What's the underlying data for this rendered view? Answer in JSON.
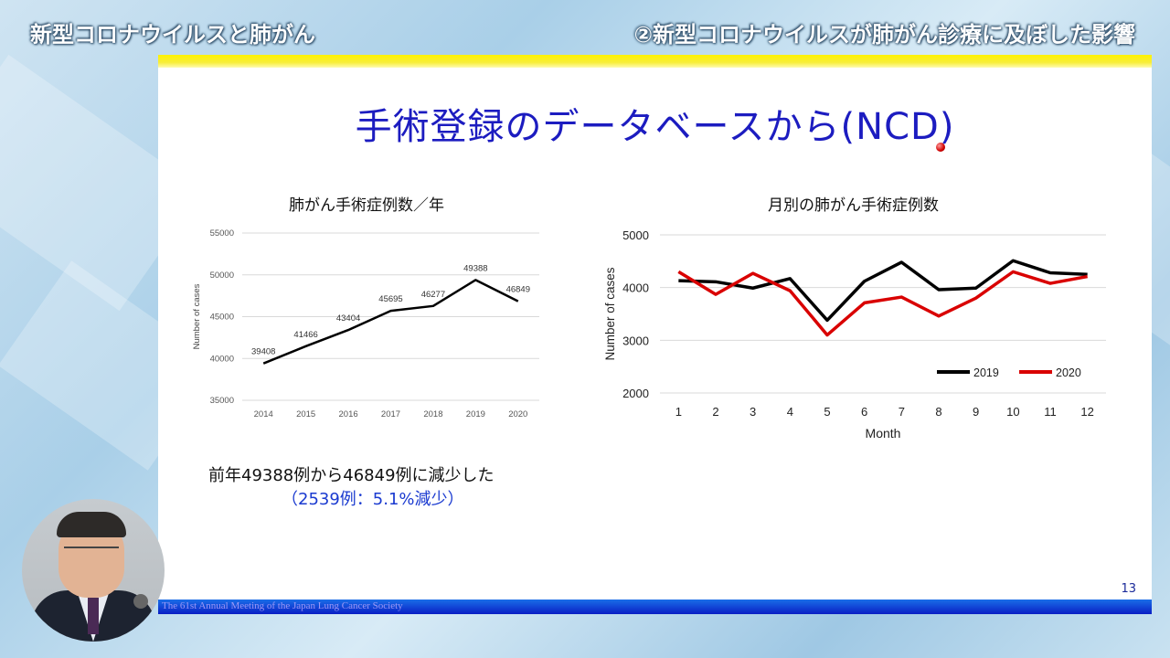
{
  "header": {
    "left_title": "新型コロナウイルスと肺がん",
    "right_title": "②新型コロナウイルスが肺がん診療に及ぼした影響"
  },
  "slide": {
    "title": "手術登録のデータベースから(NCD)",
    "note_line1": "前年49388例から46849例に減少した",
    "note_line2": "（2539例：5.1%減少）",
    "page_number": "13",
    "footer_text": "The 61st Annual Meeting of the Japan Lung Cancer Society",
    "colors": {
      "title": "#1c1cc0",
      "top_bar": "#fff200",
      "footer_bar": "#0a1fc4",
      "note_line2": "#1a3ad0"
    }
  },
  "chart_data": [
    {
      "type": "line",
      "title": "肺がん手術症例数／年",
      "xlabel": "",
      "ylabel": "Number of cases",
      "categories": [
        "2014",
        "2015",
        "2016",
        "2017",
        "2018",
        "2019",
        "2020"
      ],
      "values": [
        39408,
        41466,
        43404,
        45695,
        46277,
        49388,
        46849
      ],
      "data_labels": [
        "39408",
        "41466",
        "43404",
        "45695",
        "46277",
        "49388",
        "46849"
      ],
      "ylim": [
        35000,
        55000
      ],
      "yticks": [
        "35000",
        "40000",
        "45000",
        "50000",
        "55000"
      ],
      "grid": true,
      "color": "#000000"
    },
    {
      "type": "line",
      "title": "月別の肺がん手術症例数",
      "xlabel": "Month",
      "ylabel": "Number of cases",
      "categories": [
        "1",
        "2",
        "3",
        "4",
        "5",
        "6",
        "7",
        "8",
        "9",
        "10",
        "11",
        "12"
      ],
      "ylim": [
        2000,
        5000
      ],
      "yticks": [
        "2000",
        "3000",
        "4000",
        "5000"
      ],
      "grid": true,
      "legend": "bottom-right",
      "series": [
        {
          "name": "2019",
          "color": "#000000",
          "values": [
            4130,
            4110,
            3990,
            4170,
            3380,
            4120,
            4480,
            3960,
            3990,
            4510,
            4280,
            4250
          ]
        },
        {
          "name": "2020",
          "color": "#d90000",
          "values": [
            4300,
            3870,
            4270,
            3940,
            3100,
            3710,
            3820,
            3460,
            3800,
            4300,
            4080,
            4210
          ]
        }
      ]
    }
  ]
}
